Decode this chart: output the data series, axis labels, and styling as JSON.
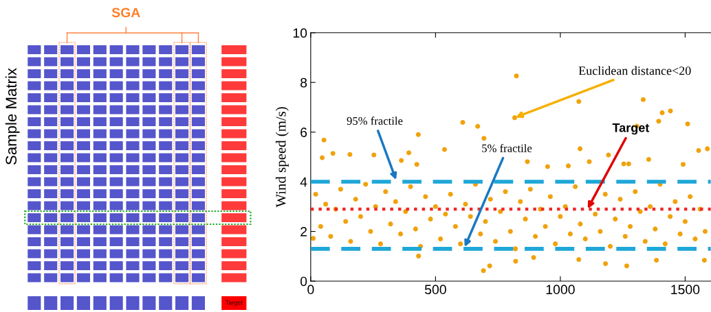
{
  "chart_data": [
    {
      "type": "other",
      "title": "SGA",
      "ylabel": "Sample Matrix",
      "annotations": [
        "Target"
      ]
    },
    {
      "type": "scatter",
      "ylabel": "Wind speed (m/s)",
      "xlim": [
        0,
        1603
      ],
      "ylim": [
        0,
        10
      ],
      "xticks": [
        0,
        500,
        1000,
        1500
      ],
      "yticks": [
        0,
        2,
        4,
        6,
        8,
        10
      ],
      "grid": false,
      "legend": false,
      "marker": "circle",
      "series": [
        {
          "color": "#f0a20c",
          "x": [
            824,
            817,
            609,
            669,
            694,
            536,
            53,
            46,
            89,
            157,
            253,
            363,
            393,
            431,
            425,
            1074,
            1079,
            868,
            1116,
            1332,
            1408,
            1441,
            1394,
            1306,
            1510,
            1354,
            1554,
            1589,
            1193,
            1492,
            1254,
            1032,
            949,
            1274,
            692,
            717,
            821,
            1266,
            1074,
            1577,
            432,
            893,
            1181,
            1385,
            10,
            20,
            40,
            60,
            80,
            100,
            120,
            140,
            160,
            180,
            200,
            220,
            240,
            260,
            280,
            300,
            320,
            340,
            360,
            380,
            400,
            420,
            440,
            460,
            480,
            500,
            520,
            540,
            560,
            580,
            600,
            620,
            640,
            660,
            680,
            700,
            720,
            740,
            760,
            780,
            800,
            820,
            840,
            860,
            880,
            900,
            920,
            940,
            960,
            980,
            1000,
            1020,
            1040,
            1060,
            1080,
            1100,
            1120,
            1140,
            1160,
            1180,
            1200,
            1220,
            1240,
            1260,
            1280,
            1300,
            1320,
            1340,
            1360,
            1380,
            1400,
            1420,
            1440,
            1460,
            1480,
            1500,
            1520,
            1540,
            1560,
            1580
          ],
          "values": [
            8.26,
            6.58,
            6.39,
            6.23,
            5.75,
            5.3,
            5.68,
            4.97,
            5.14,
            5.1,
            5.08,
            4.86,
            5.17,
            5.9,
            4.7,
            7.23,
            5.33,
            4.81,
            4.81,
            7.31,
            6.78,
            6.85,
            6.44,
            6.24,
            6.33,
            4.9,
            5.26,
            5.33,
            5.08,
            4.7,
            4.72,
            4.64,
            4.61,
            4.72,
            0.42,
            0.61,
            0.8,
            0.61,
            0.87,
            0.84,
            1.01,
            0.95,
            0.7,
            0.84,
            1.72,
            3.5,
            2.2,
            3.1,
            1.8,
            2.9,
            3.7,
            2.4,
            1.6,
            3.3,
            2.6,
            3.9,
            2.0,
            3.0,
            1.5,
            3.6,
            2.3,
            3.2,
            1.9,
            2.8,
            3.8,
            2.1,
            1.4,
            3.4,
            2.5,
            3.0,
            1.7,
            2.7,
            3.5,
            2.2,
            1.5,
            3.1,
            2.6,
            3.9,
            1.9,
            2.4,
            3.3,
            1.6,
            2.8,
            3.6,
            2.0,
            1.3,
            3.2,
            2.5,
            3.7,
            1.8,
            2.9,
            2.2,
            3.4,
            1.5,
            2.6,
            3.0,
            1.9,
            3.8,
            2.3,
            1.7,
            3.1,
            2.7,
            2.0,
            3.5,
            1.4,
            2.5,
            3.3,
            1.8,
            2.2,
            3.6,
            2.8,
            1.6,
            3.0,
            2.1,
            3.9,
            1.5,
            2.6,
            3.2,
            1.9,
            2.4,
            3.4,
            1.7,
            2.9,
            2.0
          ]
        }
      ],
      "ref_lines": [
        {
          "axis": "y",
          "value": 4.0,
          "label": "95% fractile",
          "color": "#1ea7d8",
          "line_style": "dashed"
        },
        {
          "axis": "y",
          "value": 1.3,
          "label": "5% fractile",
          "color": "#1ea7d8",
          "line_style": "dashed"
        },
        {
          "axis": "y",
          "value": 2.9,
          "label": "Target",
          "color": "#f02828",
          "line_style": "dotted"
        }
      ],
      "annotations": [
        {
          "text": "Euclidean distance<20",
          "x": 817,
          "y": 6.58
        }
      ]
    }
  ]
}
